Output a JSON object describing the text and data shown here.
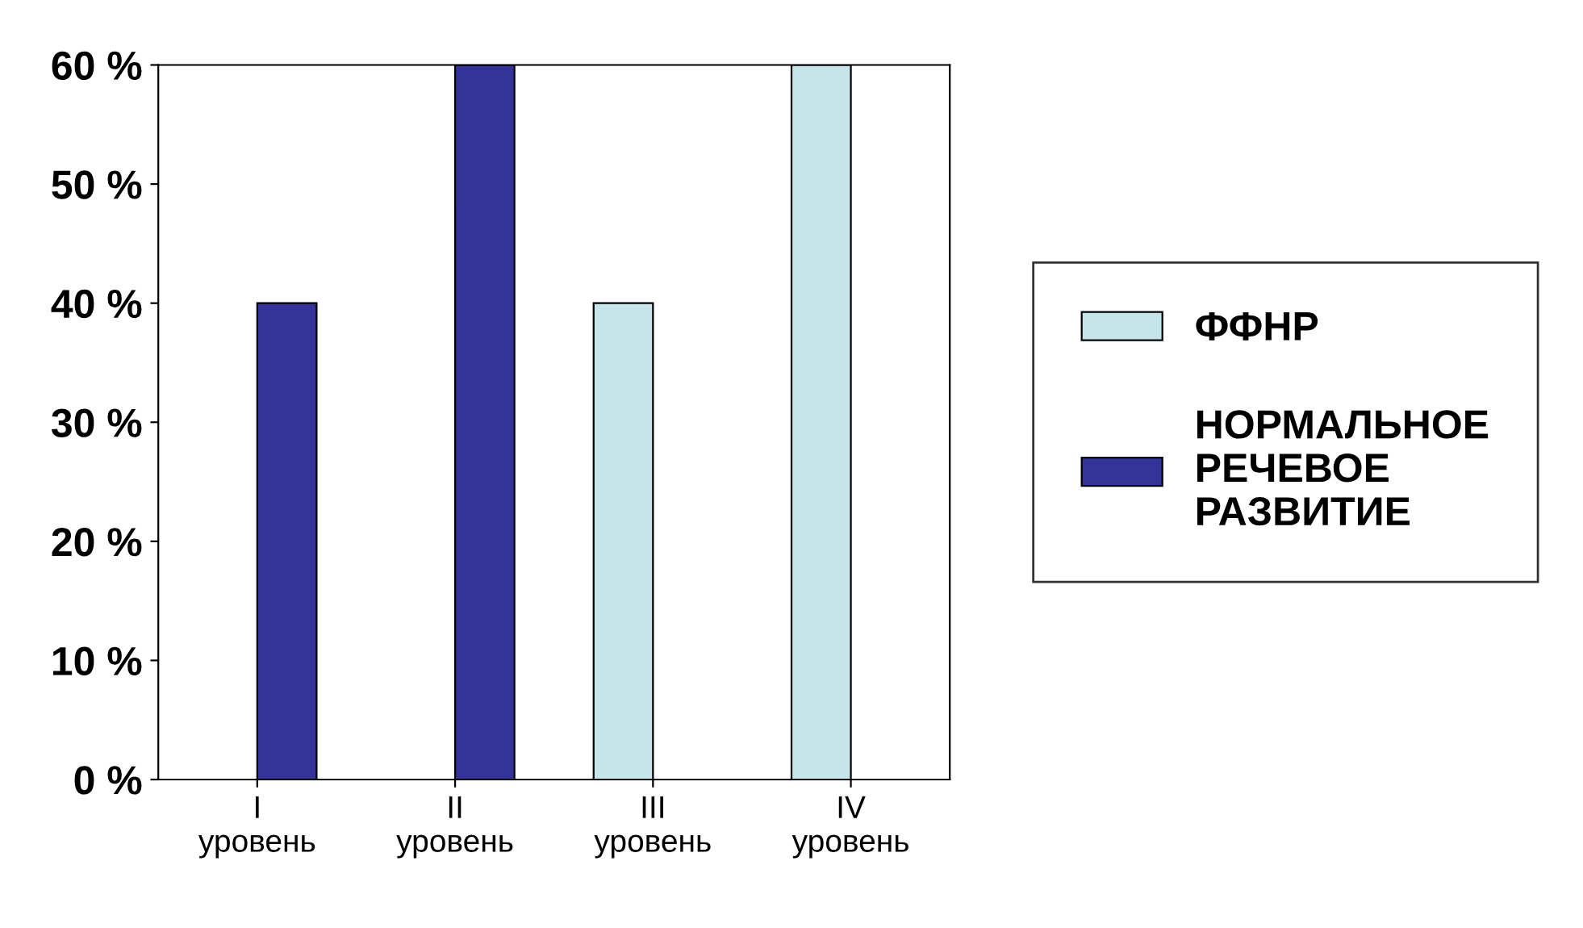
{
  "chart_data": {
    "type": "bar",
    "categories": [
      "I\nуровень",
      "II\nуровень",
      "III\nуровень",
      "IV\nуровень"
    ],
    "series": [
      {
        "name": "ФФНР",
        "color": "#c4e6ea",
        "values": [
          null,
          null,
          40,
          60
        ]
      },
      {
        "name": "НОРМАЛЬНОЕ\nРЕЧЕВОЕ\nРАЗВИТИЕ",
        "color": "#333399",
        "values": [
          40,
          60,
          null,
          null
        ]
      }
    ],
    "ylim": [
      0,
      60
    ],
    "yticks": [
      {
        "value": 0,
        "label": "0 %"
      },
      {
        "value": 10,
        "label": "10 %"
      },
      {
        "value": 20,
        "label": "20 %"
      },
      {
        "value": 30,
        "label": "30 %"
      },
      {
        "value": 40,
        "label": "40 %"
      },
      {
        "value": 50,
        "label": "50 %"
      },
      {
        "value": 60,
        "label": "60 %"
      }
    ],
    "grid": false,
    "legend": "right"
  }
}
